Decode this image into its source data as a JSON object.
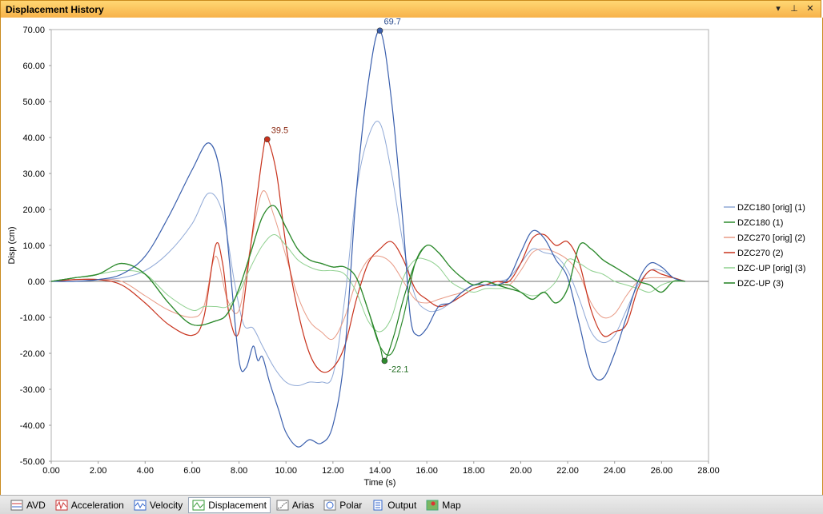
{
  "window": {
    "title": "Displacement History"
  },
  "header_buttons": [
    {
      "icon": "dropdown-arrow-icon",
      "glyph": "▾"
    },
    {
      "icon": "pin-icon",
      "glyph": "⊥"
    },
    {
      "icon": "close-icon",
      "glyph": "✕"
    }
  ],
  "tabs": [
    {
      "label": "AVD",
      "icon": "avd-icon",
      "active": false
    },
    {
      "label": "Acceleration",
      "icon": "acceleration-icon",
      "active": false
    },
    {
      "label": "Velocity",
      "icon": "velocity-icon",
      "active": false
    },
    {
      "label": "Displacement",
      "icon": "displacement-icon",
      "active": true
    },
    {
      "label": "Arias",
      "icon": "arias-icon",
      "active": false
    },
    {
      "label": "Polar",
      "icon": "polar-icon",
      "active": false
    },
    {
      "label": "Output",
      "icon": "output-icon",
      "active": false
    },
    {
      "label": "Map",
      "icon": "map-icon",
      "active": false
    }
  ],
  "chart_data": {
    "type": "line",
    "xlabel": "Time (s)",
    "ylabel": "Disp (cm)",
    "xlim": [
      0,
      28
    ],
    "ylim": [
      -50,
      70
    ],
    "xticks": [
      "0.00",
      "2.00",
      "4.00",
      "6.00",
      "8.00",
      "10.00",
      "12.00",
      "14.00",
      "16.00",
      "18.00",
      "20.00",
      "22.00",
      "24.00",
      "26.00",
      "28.00"
    ],
    "yticks": [
      "70.00",
      "60.00",
      "50.00",
      "40.00",
      "30.00",
      "20.00",
      "10.00",
      "0.00",
      "-10.00",
      "-20.00",
      "-30.00",
      "-40.00",
      "-50.00"
    ],
    "legend_position": "right",
    "series": [
      {
        "name": "DZC180 [orig]  (1)",
        "color": "#8fa8d6",
        "x": [
          0,
          1,
          2,
          3,
          4,
          5,
          6,
          6.7,
          7.3,
          7.8,
          8.2,
          8.6,
          9.0,
          9.5,
          10,
          10.5,
          11,
          11.5,
          12,
          12.5,
          13,
          13.5,
          14,
          14.5,
          15,
          15.5,
          16,
          16.5,
          17,
          17.5,
          18,
          18.5,
          19,
          19.5,
          20,
          20.5,
          21,
          21.5,
          22,
          22.5,
          23,
          23.5,
          24,
          24.5,
          25,
          25.5,
          26,
          26.5,
          27
        ],
        "y": [
          0,
          0.5,
          0.5,
          1,
          3,
          8,
          16,
          24.5,
          19,
          0,
          -12,
          -13,
          -18,
          -24,
          -28,
          -29,
          -28,
          -28,
          -26,
          -5,
          25,
          40,
          44,
          30,
          10,
          -4,
          -8,
          -8,
          -6,
          -3,
          -1,
          0,
          0,
          1,
          5,
          9,
          8,
          7,
          3,
          -5,
          -14,
          -17,
          -15,
          -8,
          -1,
          3,
          3,
          1,
          0
        ]
      },
      {
        "name": "DZC180 (1)",
        "color": "#2e8b2e",
        "x": [
          0,
          1,
          2,
          3,
          4,
          5,
          6,
          7,
          7.5,
          8,
          8.5,
          9,
          9.5,
          10,
          10.5,
          11,
          11.5,
          12,
          12.5,
          13,
          13.5,
          14,
          14.5,
          15,
          15.5,
          16,
          16.5,
          17,
          17.5,
          18,
          18.5,
          19,
          19.5,
          20,
          20.5,
          21,
          21.5,
          22,
          22.5,
          23,
          23.5,
          24,
          24.5,
          25,
          25.5,
          26,
          26.5,
          27
        ],
        "y": [
          0,
          1,
          2,
          5,
          2,
          -6,
          -12,
          -11,
          -9,
          -2,
          8,
          18,
          21,
          15,
          9,
          6,
          5,
          4,
          4,
          1,
          -8,
          -18,
          -20,
          -10,
          5,
          10,
          8,
          4,
          1,
          -1,
          0,
          -1,
          -1,
          -3,
          -5,
          -3,
          -6,
          -2,
          10,
          9,
          6,
          4,
          2,
          0,
          -1,
          -3,
          0,
          0
        ]
      },
      {
        "name": "DZC270 [orig]  (2)",
        "color": "#e89a85",
        "x": [
          0,
          1,
          2,
          3,
          4,
          5,
          6,
          6.5,
          7,
          7.5,
          8,
          8.5,
          9,
          9.5,
          10,
          10.5,
          11,
          11.5,
          12,
          12.5,
          13,
          13.5,
          14,
          14.5,
          15,
          15.5,
          16,
          16.5,
          17,
          17.5,
          18,
          18.5,
          19,
          19.5,
          20,
          20.5,
          21,
          21.5,
          22,
          22.5,
          23,
          23.5,
          24,
          24.5,
          25,
          25.5,
          26,
          26.5,
          27
        ],
        "y": [
          0,
          0.5,
          0.5,
          0,
          -4,
          -8,
          -10,
          -7,
          7,
          -5,
          -8,
          10,
          25,
          18,
          7,
          -4,
          -11,
          -14,
          -16,
          -10,
          0,
          6,
          7,
          5,
          0,
          -5,
          -6,
          -5,
          -4,
          -3,
          -1,
          -1,
          0,
          -1,
          3,
          8,
          9,
          8,
          6,
          2,
          -6,
          -10,
          -9,
          -4,
          0,
          1,
          1,
          1,
          0
        ]
      },
      {
        "name": "DZC270 (2)",
        "color": "#c8321c",
        "x": [
          0,
          1,
          2,
          3,
          4,
          5,
          6,
          6.5,
          7,
          7.3,
          7.6,
          8,
          8.5,
          9,
          9.2,
          9.6,
          10,
          10.5,
          11,
          11.5,
          12,
          12.5,
          13,
          13.5,
          14,
          14.5,
          15,
          15.5,
          16,
          16.5,
          17,
          17.5,
          18,
          18.5,
          19,
          19.5,
          20,
          20.5,
          21,
          21.5,
          22,
          22.5,
          23,
          23.5,
          24,
          24.5,
          25,
          25.5,
          26,
          26.5,
          27
        ],
        "y": [
          0,
          0.5,
          0.5,
          -1,
          -6,
          -12,
          -15,
          -10,
          10,
          5,
          -10,
          -14,
          10,
          35,
          39.5,
          30,
          10,
          -8,
          -20,
          -25,
          -24,
          -18,
          -5,
          5,
          9,
          11,
          6,
          -2,
          -5,
          -7,
          -6,
          -4,
          -2,
          -1,
          0,
          0,
          5,
          12,
          13,
          10,
          11,
          5,
          -8,
          -15,
          -14,
          -12,
          -2,
          3,
          2,
          1,
          0
        ]
      },
      {
        "name": "DZC-UP [orig]  (3)",
        "color": "#8fd08f",
        "x": [
          0,
          1,
          2,
          3,
          4,
          5,
          6,
          6.5,
          7,
          7.5,
          8,
          8.5,
          9,
          9.5,
          10,
          10.5,
          11,
          11.5,
          12,
          12.5,
          13,
          13.5,
          14,
          14.5,
          15,
          15.5,
          16,
          16.5,
          17,
          17.5,
          18,
          18.5,
          19,
          19.5,
          20,
          20.5,
          21,
          21.5,
          22,
          22.5,
          23,
          23.5,
          24,
          24.5,
          25,
          25.5,
          26,
          26.5,
          27
        ],
        "y": [
          0,
          1,
          2,
          3,
          2,
          -4,
          -8,
          -7,
          -7,
          -7,
          -3,
          4,
          10,
          13,
          10,
          6,
          4,
          3,
          3,
          2,
          -3,
          -11,
          -14,
          -10,
          1,
          6,
          6,
          4,
          0,
          -2,
          -3,
          -2,
          -2,
          -2,
          -3,
          -4,
          -3,
          0,
          6,
          5,
          3,
          2,
          0,
          -1,
          -2,
          -3,
          -1,
          0,
          0
        ]
      },
      {
        "name": "DZC-UP (3)",
        "color": "#1f7f1f",
        "x": [
          0,
          1,
          2,
          3,
          4,
          5,
          6,
          7,
          7.5,
          8,
          8.5,
          9,
          9.5,
          10,
          10.5,
          11,
          11.5,
          12,
          12.5,
          13,
          13.5,
          14,
          14.2,
          14.6,
          15,
          15.5,
          16,
          16.5,
          17,
          17.5,
          18,
          18.5,
          19,
          19.5,
          20,
          20.5,
          21,
          21.5,
          22,
          22.5,
          23,
          23.5,
          24,
          24.5,
          25,
          25.5,
          26,
          26.5,
          27
        ],
        "y": [
          0,
          1,
          2,
          5,
          2,
          -6,
          -12,
          -11,
          -9,
          -2,
          8,
          18,
          21,
          15,
          9,
          6,
          5,
          4,
          4,
          1,
          -8,
          -18,
          -22.1,
          -15,
          -5,
          5,
          10,
          8,
          4,
          1,
          -1,
          0,
          -1,
          -2,
          -3,
          -5,
          -3,
          -6,
          -2,
          10,
          9,
          6,
          4,
          2,
          0,
          -1,
          -3,
          0,
          0
        ]
      }
    ],
    "annotations": [
      {
        "label": "69.7",
        "x": 14.0,
        "y": 69.7,
        "color": "#3a5fad",
        "text_color": "#2f4f8f"
      },
      {
        "label": "39.5",
        "x": 9.2,
        "y": 39.5,
        "color": "#c8321c",
        "text_color": "#8b2a14"
      },
      {
        "label": "-22.1",
        "x": 14.2,
        "y": -22.1,
        "color": "#2e8b2e",
        "text_color": "#1f6b1f"
      }
    ],
    "extra_series_colors": {
      "DZC180_main": "#3a5fad"
    }
  }
}
